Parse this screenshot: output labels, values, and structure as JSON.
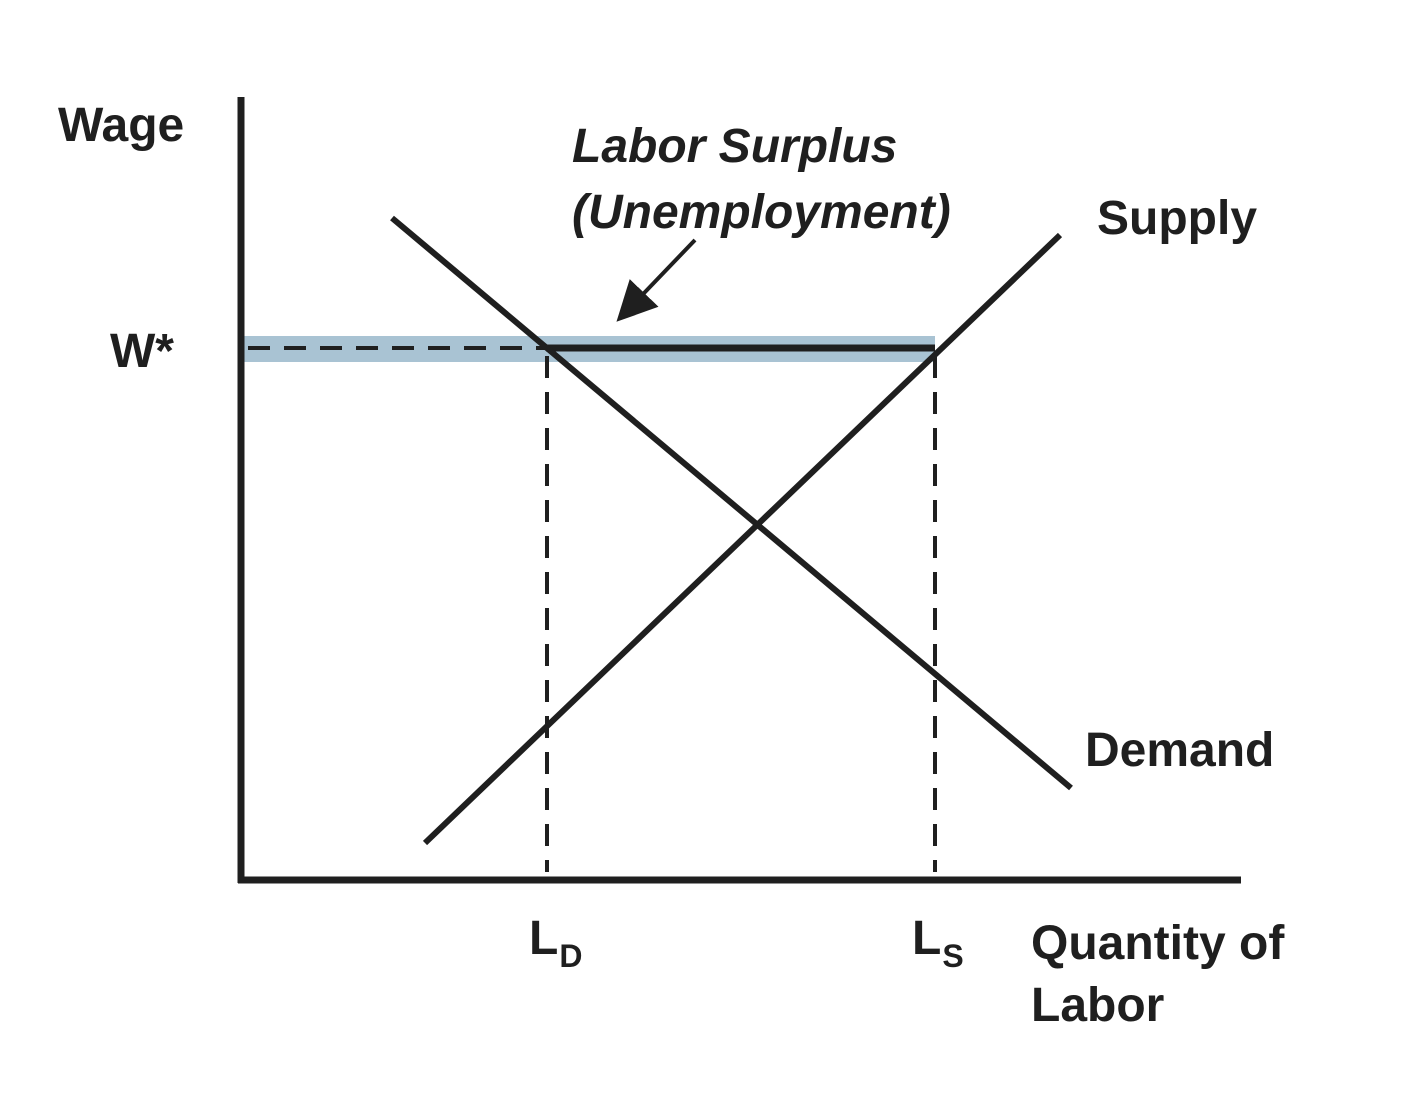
{
  "axes": {
    "y_label": "Wage",
    "x_label_line1": "Quantity of",
    "x_label_line2": "Labor"
  },
  "wage_level": {
    "label": "W*"
  },
  "annotation": {
    "line1": "Labor Surplus",
    "line2": "(Unemployment)"
  },
  "curves": {
    "supply": {
      "label": "Supply"
    },
    "demand": {
      "label": "Demand"
    }
  },
  "quantities": {
    "demanded": {
      "main": "L",
      "sub": "D"
    },
    "supplied": {
      "main": "L",
      "sub": "S"
    }
  },
  "colors": {
    "ink": "#1f1f1f",
    "surplus_band": "#a9c3d3"
  }
}
